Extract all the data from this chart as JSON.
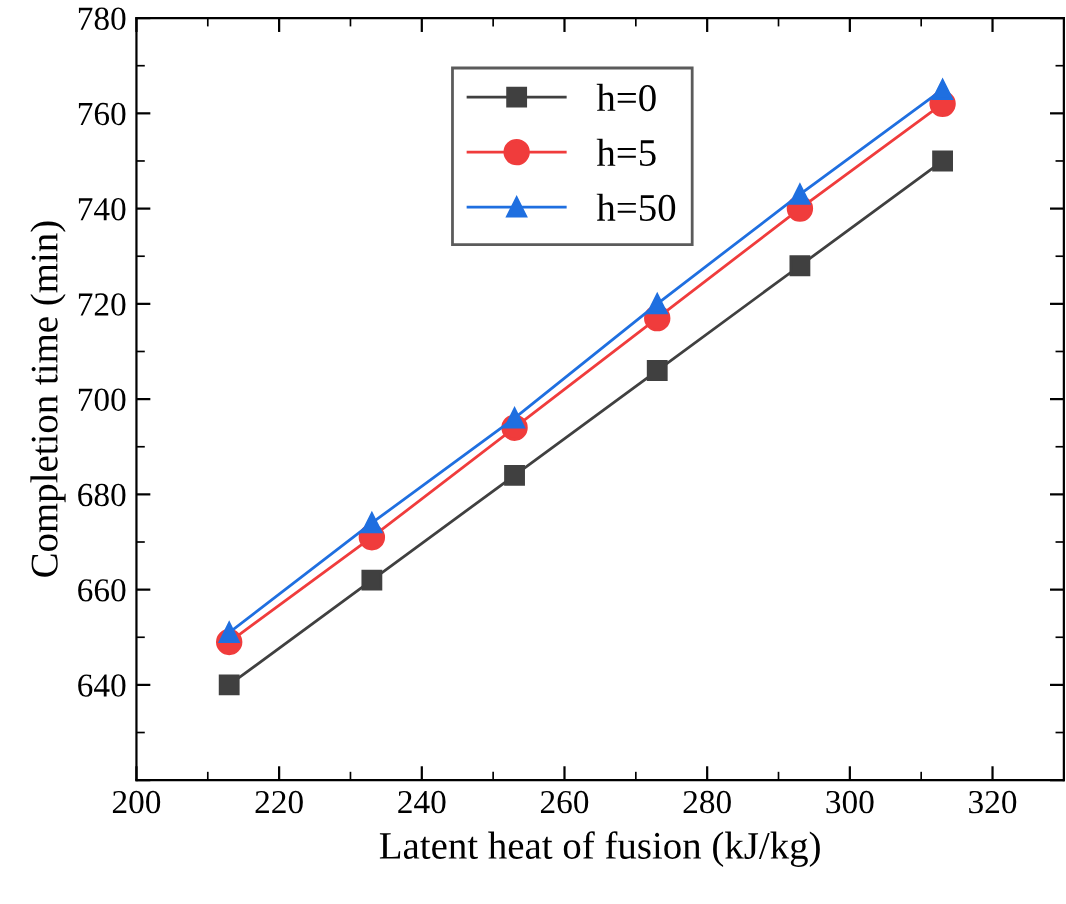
{
  "chart_data": {
    "type": "line",
    "xlabel": "Latent heat of fusion (kJ/kg)",
    "ylabel": "Completion time (min)",
    "x": [
      213,
      233,
      253,
      273,
      293,
      313
    ],
    "series": [
      {
        "name": "h=0",
        "color": "#404040",
        "marker": "square",
        "values": [
          640,
          662,
          684,
          706,
          728,
          750
        ]
      },
      {
        "name": "h=5",
        "color": "#f03c3c",
        "marker": "circle",
        "values": [
          649,
          671,
          694,
          717,
          740,
          762
        ]
      },
      {
        "name": "h=50",
        "color": "#1f6fe0",
        "marker": "triangle",
        "values": [
          651,
          674,
          696,
          720,
          743,
          765
        ]
      }
    ],
    "xlim": [
      200,
      330
    ],
    "xticks": [
      200,
      220,
      240,
      260,
      280,
      300,
      320
    ],
    "ylim": [
      620,
      780
    ],
    "yticks": [
      {
        "value": 620,
        "label": null
      },
      640,
      660,
      680,
      700,
      720,
      740,
      760,
      780
    ],
    "grid": false,
    "legend": "top",
    "line_style": "solid"
  }
}
